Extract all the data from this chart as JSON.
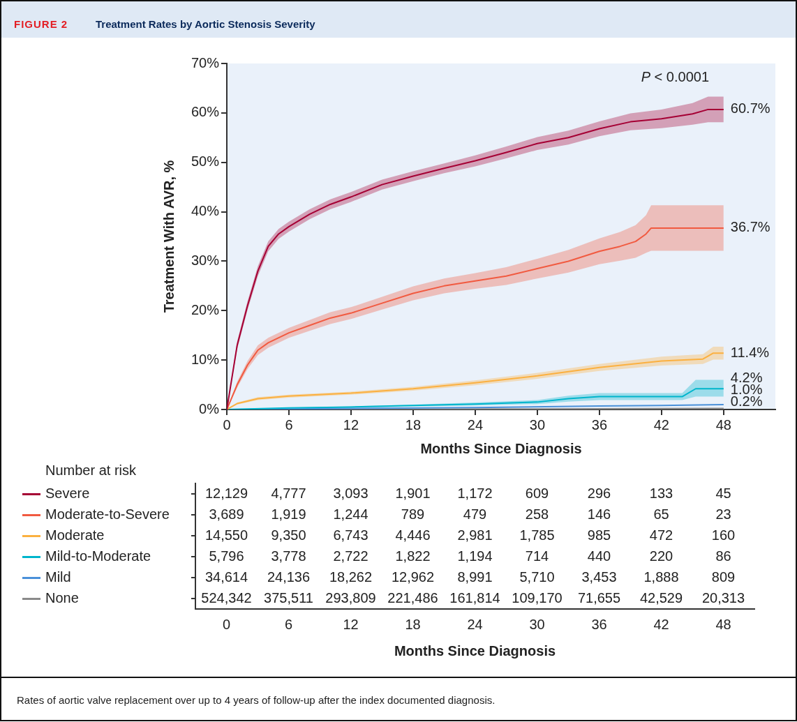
{
  "chart_data": [
    {
      "type": "line",
      "title": "Treatment Rates by Aortic Stenosis Severity",
      "annotations": [
        "FIGURE 2",
        "P < 0.0001",
        "Rates of aortic valve replacement over up to 4 years of follow-up after the index documented diagnosis."
      ],
      "xlabel": "Months Since Diagnosis",
      "ylabel": "Treatment With AVR, %",
      "xlim": [
        0,
        53
      ],
      "xticks": [
        0,
        6,
        12,
        18,
        24,
        30,
        36,
        42,
        48
      ],
      "ylim": [
        0,
        70
      ],
      "yticks": [
        {
          "value": 0,
          "label": "0%"
        },
        {
          "value": 10,
          "label": "10%"
        },
        {
          "value": 20,
          "label": "20%"
        },
        {
          "value": 30,
          "label": "30%"
        },
        {
          "value": 40,
          "label": "40%"
        },
        {
          "value": 50,
          "label": "50%"
        },
        {
          "value": 60,
          "label": "60%"
        },
        {
          "value": 70,
          "label": "70%"
        }
      ],
      "grid": false,
      "legend": false,
      "marker": "none",
      "line_style": "solid",
      "series": [
        {
          "color": "#a50034",
          "x": [
            0,
            1,
            2,
            3,
            4,
            5,
            6,
            8,
            10,
            12,
            15,
            18,
            21,
            24,
            27,
            30,
            33,
            36,
            39,
            42,
            45,
            46.5,
            48
          ],
          "values": [
            0,
            13,
            21,
            28,
            33,
            35.5,
            37,
            39.5,
            41.5,
            43,
            45.5,
            47.2,
            48.8,
            50.3,
            52,
            53.8,
            55,
            56.8,
            58.2,
            58.8,
            59.8,
            60.7,
            60.7
          ],
          "lower": [
            0,
            12.2,
            20.1,
            27,
            32,
            34.5,
            36,
            38.5,
            40.5,
            42,
            44.5,
            46.2,
            47.8,
            49.2,
            50.8,
            52.5,
            53.6,
            55.3,
            56.5,
            56.9,
            57.6,
            58.1,
            58.1
          ],
          "upper": [
            0,
            13.8,
            21.9,
            29,
            34,
            36.5,
            38,
            40.5,
            42.5,
            44,
            46.5,
            48.2,
            49.8,
            51.4,
            53.2,
            55.1,
            56.4,
            58.3,
            59.9,
            60.7,
            62,
            63.3,
            63.3
          ],
          "value_labels": [
            null,
            null,
            null,
            null,
            null,
            null,
            null,
            null,
            null,
            null,
            null,
            null,
            null,
            null,
            null,
            null,
            null,
            null,
            null,
            null,
            null,
            null,
            "60.7%"
          ]
        },
        {
          "color": "#f15a40",
          "x": [
            0,
            1,
            2,
            3,
            4,
            6,
            8,
            10,
            12,
            15,
            18,
            21,
            24,
            27,
            30,
            33,
            36,
            38,
            39.5,
            40.5,
            41,
            48
          ],
          "values": [
            0,
            5,
            9,
            12,
            13.5,
            15.5,
            17,
            18.5,
            19.5,
            21.5,
            23.5,
            25,
            26,
            27,
            28.5,
            30,
            32,
            33,
            34,
            35.5,
            36.7,
            36.7
          ],
          "lower": [
            0,
            4.4,
            8.2,
            11,
            12.5,
            14.5,
            15.9,
            17.3,
            18.3,
            20.2,
            22.1,
            23.5,
            24.4,
            25.2,
            26.5,
            27.7,
            29.4,
            30.1,
            30.7,
            31.7,
            32.1,
            32.1
          ],
          "upper": [
            0,
            5.6,
            9.8,
            13,
            14.5,
            16.5,
            18.1,
            19.7,
            20.7,
            22.8,
            24.9,
            26.5,
            27.6,
            28.8,
            30.5,
            32.3,
            34.6,
            35.9,
            37.3,
            39.3,
            41.3,
            41.3
          ],
          "value_labels": [
            null,
            null,
            null,
            null,
            null,
            null,
            null,
            null,
            null,
            null,
            null,
            null,
            null,
            null,
            null,
            null,
            null,
            null,
            null,
            null,
            null,
            "36.7%"
          ]
        },
        {
          "color": "#fbb040",
          "x": [
            0,
            1,
            3,
            6,
            12,
            18,
            24,
            30,
            36,
            42,
            46,
            47,
            48
          ],
          "values": [
            0,
            1.2,
            2.2,
            2.7,
            3.3,
            4.2,
            5.4,
            6.8,
            8.5,
            9.8,
            10.2,
            11.4,
            11.4
          ],
          "lower": [
            0,
            1,
            1.9,
            2.4,
            3,
            3.8,
            4.9,
            6.2,
            7.8,
            8.9,
            9.2,
            10.1,
            10.1
          ],
          "upper": [
            0,
            1.4,
            2.5,
            3,
            3.6,
            4.6,
            5.9,
            7.4,
            9.2,
            10.7,
            11.2,
            12.7,
            12.7
          ],
          "value_labels": [
            null,
            null,
            null,
            null,
            null,
            null,
            null,
            null,
            null,
            null,
            null,
            null,
            "11.4%"
          ]
        },
        {
          "color": "#00b5cc",
          "x": [
            0,
            6,
            12,
            18,
            24,
            30,
            33,
            36,
            44,
            45.3,
            48
          ],
          "values": [
            0,
            0.3,
            0.5,
            0.8,
            1.1,
            1.5,
            2.2,
            2.6,
            2.6,
            4.2,
            4.2
          ],
          "lower": [
            0,
            0.2,
            0.35,
            0.6,
            0.8,
            1.1,
            1.6,
            1.9,
            1.9,
            2.6,
            2.6
          ],
          "upper": [
            0,
            0.4,
            0.65,
            1,
            1.4,
            1.9,
            2.8,
            3.3,
            3.3,
            6,
            6
          ],
          "value_labels": [
            null,
            null,
            null,
            null,
            null,
            null,
            null,
            null,
            null,
            null,
            "4.2%"
          ]
        },
        {
          "color": "#4a90d9",
          "x": [
            0,
            12,
            24,
            36,
            42,
            48
          ],
          "values": [
            0,
            0.2,
            0.4,
            0.7,
            0.8,
            1.0
          ],
          "value_labels": [
            null,
            null,
            null,
            null,
            null,
            "1.0%"
          ]
        },
        {
          "color": "#8a8a8a",
          "x": [
            0,
            24,
            48
          ],
          "values": [
            0,
            0.1,
            0.2
          ],
          "value_labels": [
            null,
            null,
            "0.2%"
          ]
        }
      ]
    },
    {
      "type": "heatmap",
      "title": "Number at risk",
      "xlabel": "Months Since Diagnosis",
      "categories": [
        "0",
        "6",
        "12",
        "18",
        "24",
        "30",
        "36",
        "42",
        "48"
      ],
      "y_categories": [
        "Severe",
        "Moderate-to-Severe",
        "Moderate",
        "Mild-to-Moderate",
        "Mild",
        "None"
      ],
      "cells": [
        [
          12129,
          4777,
          3093,
          1901,
          1172,
          609,
          296,
          133,
          45
        ],
        [
          3689,
          1919,
          1244,
          789,
          479,
          258,
          146,
          65,
          23
        ],
        [
          14550,
          9350,
          6743,
          4446,
          2981,
          1785,
          985,
          472,
          160
        ],
        [
          5796,
          3778,
          2722,
          1822,
          1194,
          714,
          440,
          220,
          86
        ],
        [
          34614,
          24136,
          18262,
          12962,
          8991,
          5710,
          3453,
          1888,
          809
        ],
        [
          524342,
          375511,
          293809,
          221486,
          161814,
          109170,
          71655,
          42529,
          20313
        ]
      ],
      "cell_labels": [
        [
          "12,129",
          "4,777",
          "3,093",
          "1,901",
          "1,172",
          "609",
          "296",
          "133",
          "45"
        ],
        [
          "3,689",
          "1,919",
          "1,244",
          "789",
          "479",
          "258",
          "146",
          "65",
          "23"
        ],
        [
          "14,550",
          "9,350",
          "6,743",
          "4,446",
          "2,981",
          "1,785",
          "985",
          "472",
          "160"
        ],
        [
          "5,796",
          "3,778",
          "2,722",
          "1,822",
          "1,194",
          "714",
          "440",
          "220",
          "86"
        ],
        [
          "34,614",
          "24,136",
          "18,262",
          "12,962",
          "8,991",
          "5,710",
          "3,453",
          "1,888",
          "809"
        ],
        [
          "524,342",
          "375,511",
          "293,809",
          "221,486",
          "161,814",
          "109,170",
          "71,655",
          "42,529",
          "20,313"
        ]
      ]
    }
  ]
}
